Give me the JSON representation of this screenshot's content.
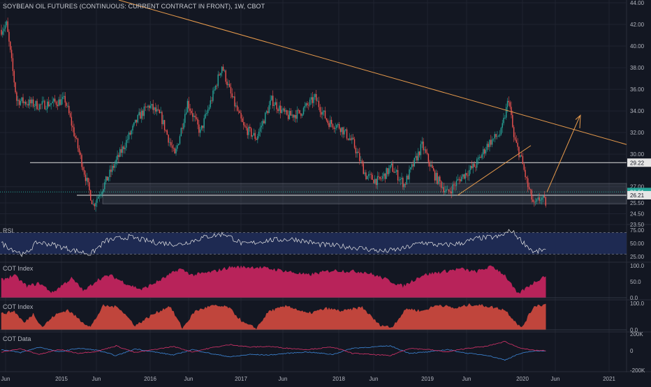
{
  "header": {
    "title": "SOYBEAN OIL FUTURES (CONTINUOUS: CURRENT CONTRACT IN FRONT), 1W, CBOT"
  },
  "colors": {
    "background": "#131722",
    "grid": "#1f2330",
    "text": "#b2b5be",
    "candle_up": "#26a69a",
    "candle_down": "#ef5350",
    "trendline": "#e89b4c",
    "rsi_band": "#1e2a52",
    "cot_index_1": "#b8235a",
    "cot_index_2": "#c0453c",
    "cot_data_blue": "#3d87d8",
    "cot_data_red": "#d8336b"
  },
  "chart_data": [
    {
      "type": "candlestick",
      "panel": "price",
      "ylim": [
        23.5,
        44.0
      ],
      "y_ticks": [
        "44.00",
        "42.00",
        "40.00",
        "38.00",
        "36.00",
        "34.00",
        "32.00",
        "30.00",
        "29.22",
        "27.00",
        "26.51",
        "26.21",
        "25.50",
        "24.50",
        "23.50"
      ],
      "price_marks": [
        {
          "value": "29.22",
          "style": "light"
        },
        {
          "value": "26.51",
          "style": "green"
        },
        {
          "value": "26.21",
          "style": "light"
        }
      ],
      "x_ticks": [
        "Jun",
        "2015",
        "Jun",
        "2016",
        "Jun",
        "2017",
        "Jun",
        "2018",
        "Jun",
        "2019",
        "Jun",
        "2020",
        "Jun",
        "2021"
      ],
      "anchors": [
        [
          0,
          41.5
        ],
        [
          4,
          42.0
        ],
        [
          12,
          35.0
        ],
        [
          30,
          34.5
        ],
        [
          50,
          35.0
        ],
        [
          58,
          31.5
        ],
        [
          68,
          27.0
        ],
        [
          72,
          25.3
        ],
        [
          82,
          27.5
        ],
        [
          95,
          30.5
        ],
        [
          108,
          33.5
        ],
        [
          116,
          34.5
        ],
        [
          125,
          33.5
        ],
        [
          136,
          29.8
        ],
        [
          146,
          34.8
        ],
        [
          156,
          32.0
        ],
        [
          166,
          35.5
        ],
        [
          173,
          38.2
        ],
        [
          180,
          35.5
        ],
        [
          190,
          32.5
        ],
        [
          200,
          31.5
        ],
        [
          212,
          35.0
        ],
        [
          224,
          33.5
        ],
        [
          234,
          33.8
        ],
        [
          246,
          35.2
        ],
        [
          256,
          33.0
        ],
        [
          266,
          32.5
        ],
        [
          276,
          31.0
        ],
        [
          286,
          28.0
        ],
        [
          296,
          27.5
        ],
        [
          306,
          28.8
        ],
        [
          316,
          27.2
        ],
        [
          330,
          30.8
        ],
        [
          340,
          28.0
        ],
        [
          350,
          26.4
        ],
        [
          360,
          27.8
        ],
        [
          372,
          29.0
        ],
        [
          382,
          31.0
        ],
        [
          392,
          32.0
        ],
        [
          398,
          35.2
        ],
        [
          402,
          31.5
        ],
        [
          408,
          29.5
        ],
        [
          413,
          27.0
        ],
        [
          418,
          25.2
        ],
        [
          423,
          26.0
        ],
        [
          427,
          25.5
        ]
      ]
    },
    {
      "type": "line",
      "panel": "RSI",
      "name": "RSI",
      "ylim": [
        20,
        80
      ],
      "y_ticks": [
        "75.00",
        "50.00",
        "25.00"
      ],
      "band": [
        30,
        70
      ],
      "anchors": [
        [
          0,
          50
        ],
        [
          8,
          40
        ],
        [
          18,
          28
        ],
        [
          28,
          52
        ],
        [
          40,
          48
        ],
        [
          55,
          38
        ],
        [
          70,
          30
        ],
        [
          82,
          55
        ],
        [
          100,
          62
        ],
        [
          120,
          52
        ],
        [
          140,
          48
        ],
        [
          160,
          62
        ],
        [
          175,
          68
        ],
        [
          190,
          48
        ],
        [
          210,
          56
        ],
        [
          230,
          58
        ],
        [
          250,
          48
        ],
        [
          270,
          44
        ],
        [
          285,
          40
        ],
        [
          300,
          35
        ],
        [
          315,
          40
        ],
        [
          330,
          52
        ],
        [
          345,
          46
        ],
        [
          360,
          50
        ],
        [
          375,
          60
        ],
        [
          390,
          62
        ],
        [
          400,
          74
        ],
        [
          408,
          55
        ],
        [
          418,
          33
        ],
        [
          425,
          38
        ],
        [
          427,
          36
        ]
      ]
    },
    {
      "type": "area",
      "panel": "COT Index",
      "name": "COT Index",
      "ylim": [
        0,
        100
      ],
      "y_ticks": [
        "100.0",
        "50.0",
        "0.0"
      ],
      "anchors": [
        [
          0,
          55
        ],
        [
          10,
          70
        ],
        [
          20,
          35
        ],
        [
          30,
          45
        ],
        [
          40,
          15
        ],
        [
          48,
          40
        ],
        [
          55,
          60
        ],
        [
          65,
          20
        ],
        [
          75,
          55
        ],
        [
          85,
          70
        ],
        [
          100,
          40
        ],
        [
          110,
          25
        ],
        [
          125,
          55
        ],
        [
          140,
          90
        ],
        [
          150,
          70
        ],
        [
          165,
          80
        ],
        [
          180,
          95
        ],
        [
          200,
          95
        ],
        [
          220,
          85
        ],
        [
          240,
          70
        ],
        [
          260,
          85
        ],
        [
          285,
          80
        ],
        [
          300,
          60
        ],
        [
          315,
          35
        ],
        [
          330,
          70
        ],
        [
          345,
          80
        ],
        [
          360,
          90
        ],
        [
          372,
          80
        ],
        [
          385,
          98
        ],
        [
          395,
          70
        ],
        [
          405,
          10
        ],
        [
          415,
          40
        ],
        [
          427,
          70
        ]
      ]
    },
    {
      "type": "area",
      "panel": "COT Index",
      "name": "COT Index",
      "ylim": [
        0,
        100
      ],
      "y_ticks": [
        "100.0",
        "0.0"
      ],
      "anchors": [
        [
          0,
          60
        ],
        [
          10,
          70
        ],
        [
          18,
          25
        ],
        [
          25,
          60
        ],
        [
          32,
          10
        ],
        [
          42,
          55
        ],
        [
          52,
          75
        ],
        [
          62,
          35
        ],
        [
          70,
          10
        ],
        [
          80,
          90
        ],
        [
          92,
          85
        ],
        [
          105,
          15
        ],
        [
          118,
          55
        ],
        [
          132,
          90
        ],
        [
          142,
          5
        ],
        [
          152,
          70
        ],
        [
          165,
          90
        ],
        [
          178,
          85
        ],
        [
          190,
          25
        ],
        [
          200,
          5
        ],
        [
          210,
          70
        ],
        [
          225,
          90
        ],
        [
          240,
          60
        ],
        [
          255,
          80
        ],
        [
          268,
          70
        ],
        [
          283,
          85
        ],
        [
          296,
          20
        ],
        [
          306,
          8
        ],
        [
          318,
          80
        ],
        [
          330,
          70
        ],
        [
          343,
          95
        ],
        [
          356,
          80
        ],
        [
          368,
          95
        ],
        [
          380,
          90
        ],
        [
          395,
          75
        ],
        [
          408,
          5
        ],
        [
          418,
          90
        ],
        [
          427,
          95
        ]
      ]
    },
    {
      "type": "line",
      "panel": "COT Data",
      "name": "COT Data",
      "ylim": [
        -250000,
        250000
      ],
      "y_ticks": [
        "200K",
        "0",
        "-200K"
      ],
      "series_a": [
        [
          0,
          20000
        ],
        [
          15,
          -30000
        ],
        [
          30,
          60000
        ],
        [
          45,
          -20000
        ],
        [
          60,
          40000
        ],
        [
          75,
          10000
        ],
        [
          90,
          -80000
        ],
        [
          105,
          30000
        ],
        [
          120,
          -20000
        ],
        [
          135,
          -70000
        ],
        [
          150,
          20000
        ],
        [
          165,
          -50000
        ],
        [
          180,
          -100000
        ],
        [
          195,
          -60000
        ],
        [
          210,
          -70000
        ],
        [
          225,
          -40000
        ],
        [
          240,
          -20000
        ],
        [
          260,
          -60000
        ],
        [
          275,
          40000
        ],
        [
          290,
          60000
        ],
        [
          305,
          80000
        ],
        [
          320,
          -40000
        ],
        [
          335,
          -20000
        ],
        [
          350,
          20000
        ],
        [
          365,
          -40000
        ],
        [
          380,
          -70000
        ],
        [
          395,
          -150000
        ],
        [
          405,
          -60000
        ],
        [
          415,
          -10000
        ],
        [
          427,
          0
        ]
      ],
      "series_b": [
        [
          0,
          -20000
        ],
        [
          15,
          30000
        ],
        [
          30,
          -60000
        ],
        [
          45,
          20000
        ],
        [
          60,
          -40000
        ],
        [
          75,
          -10000
        ],
        [
          90,
          80000
        ],
        [
          105,
          -30000
        ],
        [
          120,
          20000
        ],
        [
          135,
          70000
        ],
        [
          150,
          -20000
        ],
        [
          165,
          50000
        ],
        [
          180,
          100000
        ],
        [
          195,
          60000
        ],
        [
          210,
          70000
        ],
        [
          225,
          40000
        ],
        [
          240,
          20000
        ],
        [
          260,
          60000
        ],
        [
          275,
          -40000
        ],
        [
          290,
          -60000
        ],
        [
          305,
          -80000
        ],
        [
          320,
          40000
        ],
        [
          335,
          20000
        ],
        [
          350,
          -20000
        ],
        [
          365,
          40000
        ],
        [
          380,
          70000
        ],
        [
          395,
          150000
        ],
        [
          405,
          60000
        ],
        [
          415,
          10000
        ],
        [
          427,
          0
        ]
      ]
    }
  ],
  "panels": {
    "rsi_label": "RSI",
    "cot1_label": "COT Index",
    "cot2_label": "COT Index",
    "cotdata_label": "COT Data"
  }
}
